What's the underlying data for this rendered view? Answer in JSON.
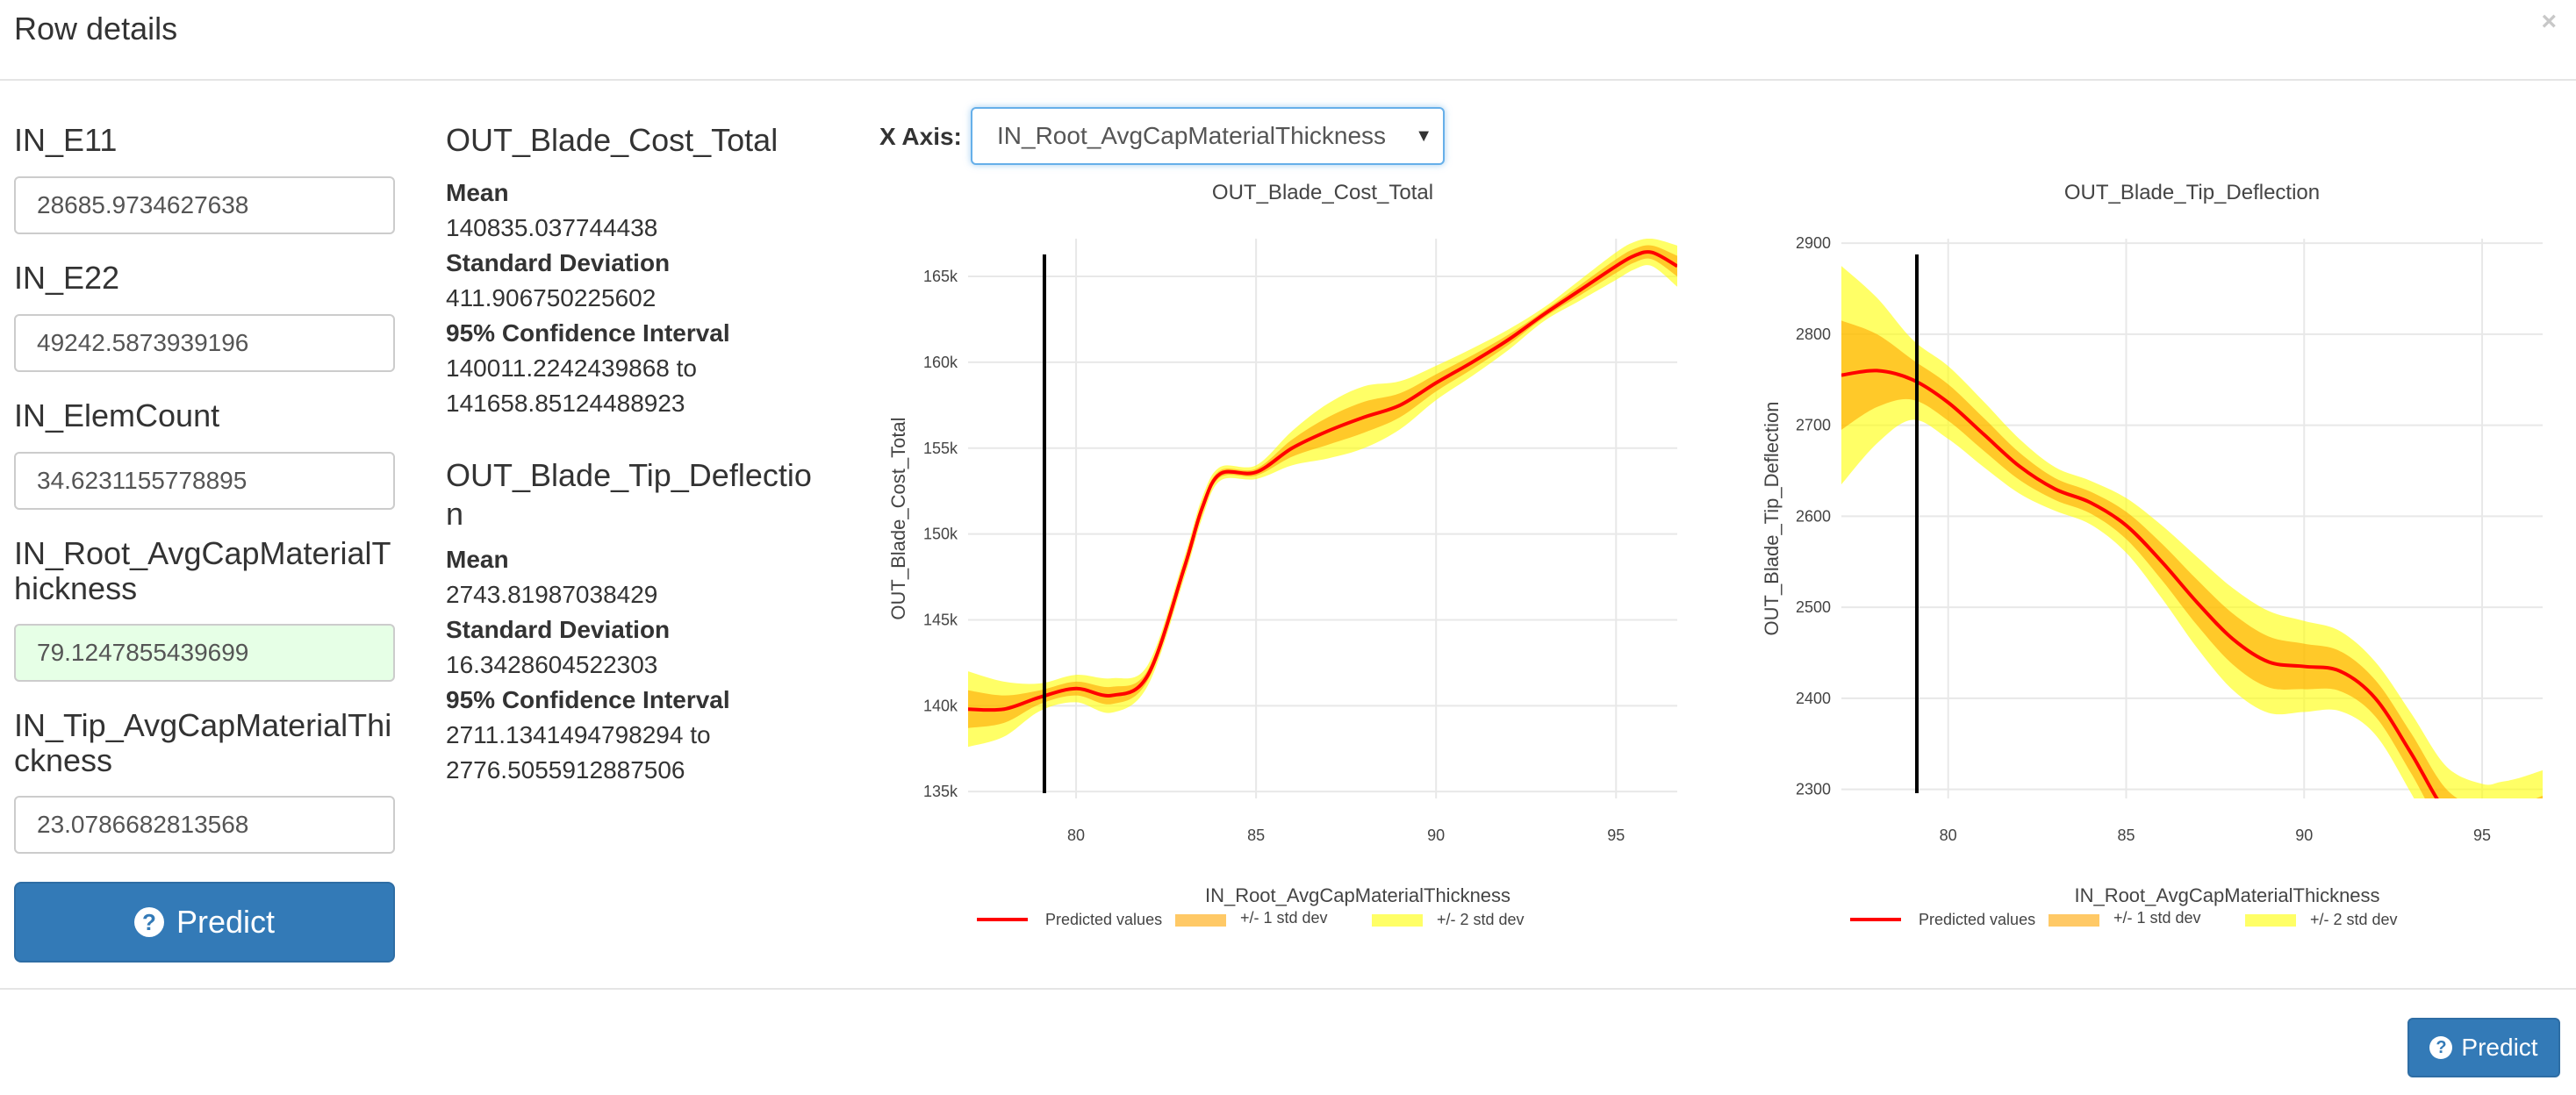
{
  "modal": {
    "title": "Row details",
    "close": "×"
  },
  "inputs": [
    {
      "label": "IN_E11",
      "value": "28685.9734627638"
    },
    {
      "label": "IN_E22",
      "value": "49242.5873939196"
    },
    {
      "label": "IN_ElemCount",
      "value": "34.6231155778895"
    },
    {
      "label": "IN_Root_AvgCapMaterialThickness",
      "value": "79.1247855439699"
    },
    {
      "label": "IN_Tip_AvgCapMaterialThickness",
      "value": "23.0786682813568"
    }
  ],
  "predict_label": "Predict",
  "outputs": [
    {
      "title": "OUT_Blade_Cost_Total",
      "mean_label": "Mean",
      "mean": "140835.037744438",
      "sd_label": "Standard Deviation",
      "sd": "411.906750225602",
      "ci_label": "95% Confidence Interval",
      "ci_low": "140011.2242439868 to",
      "ci_high": "141658.85124488923"
    },
    {
      "title": "OUT_Blade_Tip_Deflection",
      "mean_label": "Mean",
      "mean": "2743.81987038429",
      "sd_label": "Standard Deviation",
      "sd": "16.3428604522303",
      "ci_label": "95% Confidence Interval",
      "ci_low": "2711.1341494798294 to",
      "ci_high": "2776.5055912887506"
    }
  ],
  "xaxis": {
    "label": "X Axis:",
    "selected": "IN_Root_AvgCapMaterialThickness"
  },
  "legend": {
    "predicted": "Predicted values",
    "std1": "+/- 1 std dev",
    "std2": "+/- 2 std dev"
  },
  "colors": {
    "line": "#ff0000",
    "std1": "#ffa500",
    "std2": "#ffff00",
    "marker": "#000000",
    "button": "#337ab7"
  },
  "icons": {
    "predict": "question-circle-icon",
    "close": "close-icon",
    "select": "caret-down-icon"
  },
  "chart_data": [
    {
      "type": "line",
      "title": "OUT_Blade_Cost_Total",
      "xlabel": "IN_Root_AvgCapMaterialThickness",
      "ylabel": "OUT_Blade_Cost_Total",
      "xlim": [
        77,
        96.7
      ],
      "ylim": [
        134.6,
        167.2
      ],
      "xticks": [
        80,
        85,
        90,
        95
      ],
      "xtick_labels": [
        "80",
        "85",
        "90",
        "95"
      ],
      "yticks": [
        135,
        140,
        145,
        150,
        155,
        160,
        165
      ],
      "ytick_labels": [
        "135k",
        "140k",
        "145k",
        "150k",
        "155k",
        "160k",
        "165k"
      ],
      "vline_x": 79.12,
      "x": [
        77,
        78,
        79,
        80,
        81,
        82,
        83,
        83.5,
        84,
        85,
        86,
        87,
        88,
        89,
        90,
        91,
        92,
        93,
        94,
        95,
        95.5,
        96,
        96.7
      ],
      "mean": [
        139.8,
        139.8,
        140.5,
        141.0,
        140.6,
        141.8,
        148.0,
        151.5,
        153.5,
        153.6,
        155.0,
        156.0,
        156.8,
        157.5,
        158.8,
        160.0,
        161.3,
        162.8,
        164.2,
        165.6,
        166.2,
        166.4,
        165.6
      ],
      "std": [
        1.1,
        0.8,
        0.4,
        0.4,
        0.5,
        0.3,
        0.3,
        0.3,
        0.2,
        0.2,
        0.5,
        0.8,
        0.9,
        0.7,
        0.5,
        0.4,
        0.3,
        0.2,
        0.3,
        0.4,
        0.4,
        0.4,
        0.6
      ],
      "grid": true,
      "legend_position": "bottom"
    },
    {
      "type": "line",
      "title": "OUT_Blade_Tip_Deflection",
      "xlabel": "IN_Root_AvgCapMaterialThickness",
      "ylabel": "OUT_Blade_Tip_Deflection",
      "xlim": [
        77,
        96.7
      ],
      "ylim": [
        2290,
        2905
      ],
      "xticks": [
        80,
        85,
        90,
        95
      ],
      "xtick_labels": [
        "80",
        "85",
        "90",
        "95"
      ],
      "yticks": [
        2300,
        2400,
        2500,
        2600,
        2700,
        2800,
        2900
      ],
      "ytick_labels": [
        "2300",
        "2400",
        "2500",
        "2600",
        "2700",
        "2800",
        "2900"
      ],
      "vline_x": 79.12,
      "x": [
        77,
        78,
        79,
        80,
        81,
        82,
        83,
        84,
        85,
        86,
        87,
        88,
        89,
        90,
        91,
        92,
        93,
        94,
        95,
        95.5,
        96,
        96.7
      ],
      "mean": [
        2755,
        2760,
        2750,
        2725,
        2690,
        2655,
        2630,
        2615,
        2590,
        2550,
        2505,
        2465,
        2440,
        2435,
        2430,
        2400,
        2340,
        2275,
        2250,
        2248,
        2252,
        2265
      ],
      "std": [
        60,
        40,
        22,
        20,
        18,
        15,
        12,
        12,
        15,
        20,
        25,
        28,
        28,
        25,
        22,
        20,
        22,
        25,
        28,
        30,
        30,
        28
      ],
      "grid": true,
      "legend_position": "bottom"
    }
  ]
}
